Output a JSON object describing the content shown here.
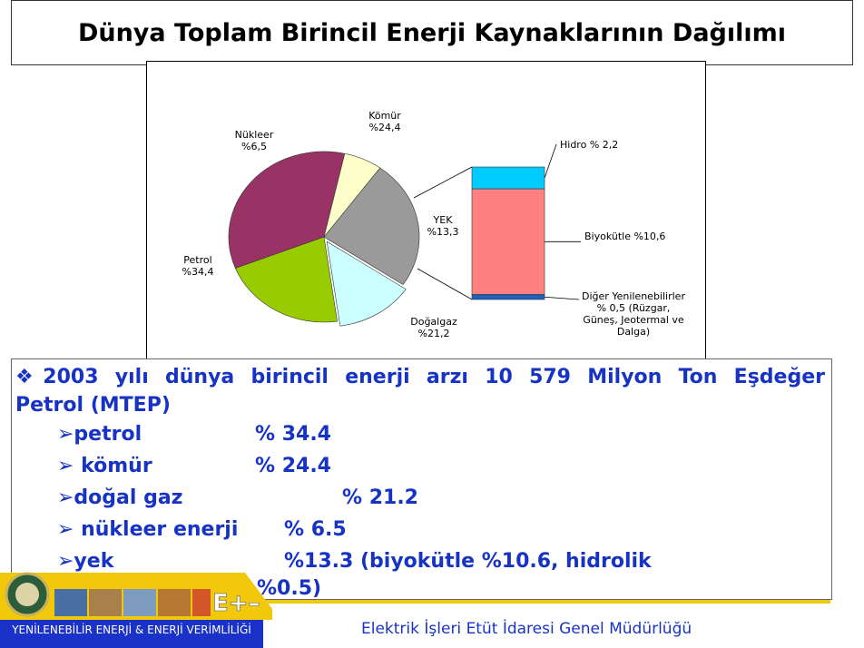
{
  "title": "Dünya Toplam Birincil Enerji Kaynaklarının Dağılımı",
  "chart_data": {
    "type": "pie",
    "categories": [
      "Kömür",
      "YEK",
      "Doğalgaz",
      "Petrol",
      "Nükleer"
    ],
    "values": [
      24.4,
      13.3,
      21.2,
      34.4,
      6.5
    ],
    "slice_labels": [
      {
        "name": "Kömür",
        "value": "%24,4"
      },
      {
        "name": "YEK",
        "value": "%13,3"
      },
      {
        "name": "Doğalgaz",
        "value": "%21,2"
      },
      {
        "name": "Petrol",
        "value": "%34,4"
      },
      {
        "name": "Nükleer",
        "value": "%6,5"
      }
    ],
    "colors": [
      "#9a9a9a",
      "#ccffff",
      "#99cc00",
      "#993366",
      "#ffffcc"
    ],
    "breakdown": {
      "of": "YEK",
      "type": "stacked-bar",
      "categories": [
        "Hidro",
        "Biyokütle",
        "Diğer Yenilenebilirler"
      ],
      "values": [
        2.2,
        10.6,
        0.5
      ],
      "colors": [
        "#00ccff",
        "#ff8080",
        "#1f5fbf"
      ],
      "labels": [
        [
          "Hidro % 2,2"
        ],
        [
          "Biyokütle %10,6"
        ],
        [
          "Diğer Yenilenebilirler",
          "% 0,5 (Rüzgar,",
          "Güneş, Jeotermal ve",
          "Dalga)"
        ]
      ]
    }
  },
  "info": {
    "headline_line1": "❖2003 yılı dünya  birincil enerji arzı 10 579 Milyon Ton Eşdeğer",
    "headline_line2": "Petrol (MTEP)",
    "items": [
      {
        "label": "➢petrol",
        "value": "% 34.4"
      },
      {
        "label": "➢ kömür",
        "value": "% 24.4"
      },
      {
        "label": "➢doğal gaz",
        "value": "% 21.2"
      },
      {
        "label": "➢ nükleer enerji",
        "value": "%  6.5"
      },
      {
        "label": "➢yek",
        "value": "%13.3 (biyokütle  %10.6, hidrolik"
      },
      {
        "label": "",
        "value": "%0.5)"
      }
    ]
  },
  "footer": {
    "left_text": "YENİLENEBİLİR ENERJİ &  ENERJİ VERİMLİLİĞİ",
    "org": "Elektrik İşleri Etüt İdaresi Genel Müdürlüğü",
    "strip_text": "E+–"
  }
}
